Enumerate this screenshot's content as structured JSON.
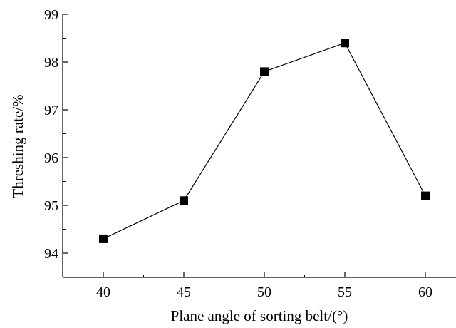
{
  "chart_data": {
    "type": "line",
    "title": "",
    "xlabel": "Plane angle of sorting belt/(°)",
    "ylabel": "Threshing rate/%",
    "x": [
      40,
      45,
      50,
      55,
      60
    ],
    "series": [
      {
        "values": [
          94.3,
          95.1,
          97.8,
          98.4,
          95.2
        ]
      }
    ],
    "xlim": [
      36,
      64
    ],
    "ylim": [
      93.5,
      99
    ],
    "xticks": [
      "40",
      "45",
      "50",
      "55",
      "60"
    ],
    "yticks": [
      "94",
      "95",
      "96",
      "97",
      "98",
      "99"
    ],
    "grid": false,
    "legend": "none",
    "marker": "filled-square",
    "colors": {
      "line": "#000000",
      "marker": "#000000",
      "axis": "#000000"
    }
  }
}
